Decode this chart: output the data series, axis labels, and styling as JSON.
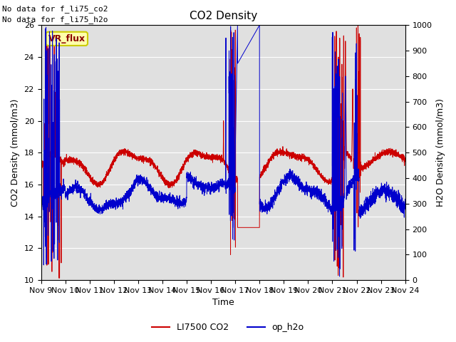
{
  "title": "CO2 Density",
  "xlabel": "Time",
  "ylabel_left": "CO2 Density (mmol/m3)",
  "ylabel_right": "H2O Density (mmol/m3)",
  "ylim_left": [
    10,
    26
  ],
  "ylim_right": [
    0,
    1000
  ],
  "no_data_text1": "No data for f_li75_co2",
  "no_data_text2": "No data for f_li75_h2o",
  "vr_flux_label": "VR_flux",
  "legend_entries": [
    "LI7500 CO2",
    "op_h2o"
  ],
  "legend_colors": [
    "#cc0000",
    "#0000cc"
  ],
  "bg_color": "#e8e8e8",
  "x_tick_labels": [
    "Nov 9",
    "Nov 10",
    "Nov 11",
    "Nov 12",
    "Nov 13",
    "Nov 14",
    "Nov 15",
    "Nov 16",
    "Nov 17",
    "Nov 18",
    "Nov 19",
    "Nov 20",
    "Nov 21",
    "Nov 22",
    "Nov 23",
    "Nov 24"
  ],
  "title_fontsize": 11,
  "label_fontsize": 9,
  "tick_fontsize": 8,
  "nodata_fontsize": 8,
  "legend_fontsize": 9
}
